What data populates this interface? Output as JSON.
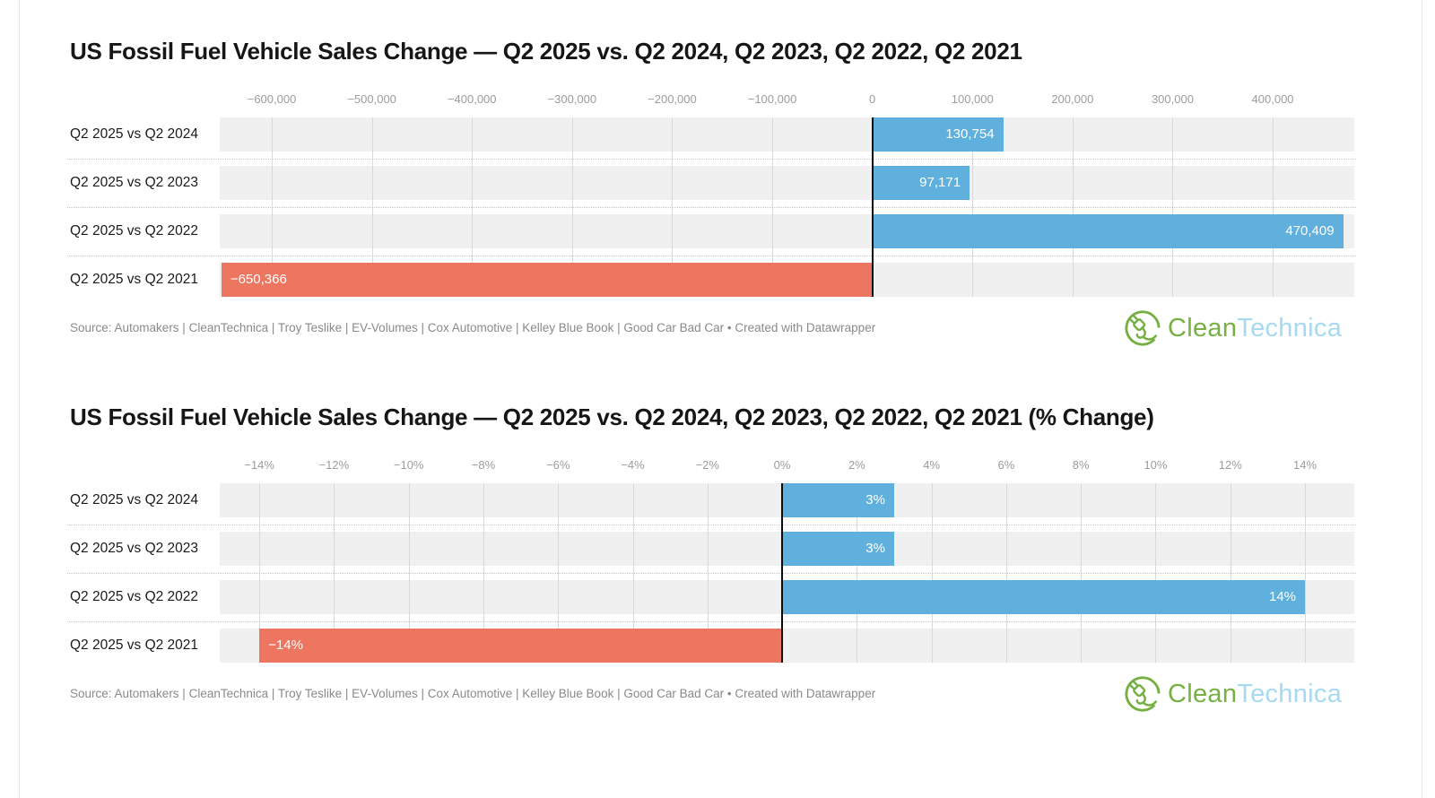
{
  "branding": {
    "clean": "Clean",
    "technica": "Technica",
    "green": "#76b043",
    "blue": "#a7d9f2"
  },
  "theme": {
    "band_bg": "#f0f0f0",
    "gridline": "#d9d9d9",
    "separator": "#c8c8c8",
    "tick_text": "#9c9c9c",
    "row_label_text": "#1a1a1a",
    "source_text": "#8a8a8a",
    "zero_line": "#0b0b0b",
    "bar_label_text": "#ffffff"
  },
  "charts": [
    {
      "source": "Source: Automakers | CleanTechnica | Troy Teslike | EV-Volumes | Cox Automotive | Kelley Blue Book | Good Car Bad Car • Created with Datawrapper",
      "chart_data": {
        "type": "bar",
        "orientation": "horizontal",
        "title": "US Fossil Fuel Vehicle Sales Change — Q2 2025 vs. Q2 2024, Q2 2023, Q2 2022, Q2 2021",
        "categories": [
          "Q2 2025 vs Q2 2024",
          "Q2 2025 vs Q2 2023",
          "Q2 2025 vs Q2 2022",
          "Q2 2025 vs Q2 2021"
        ],
        "values": [
          130754,
          97171,
          470409,
          -650366
        ],
        "value_labels": [
          "130,754",
          "97,171",
          "470,409",
          "−650,366"
        ],
        "xlim": [
          -652000,
          481500
        ],
        "grid": true,
        "legend": "none",
        "positive_color": "#5fb0dd",
        "negative_color": "#ed7661",
        "ticks": [
          {
            "value": -600000,
            "label": "−600,000"
          },
          {
            "value": -500000,
            "label": "−500,000"
          },
          {
            "value": -400000,
            "label": "−400,000"
          },
          {
            "value": -300000,
            "label": "−300,000"
          },
          {
            "value": -200000,
            "label": "−200,000"
          },
          {
            "value": -100000,
            "label": "−100,000"
          },
          {
            "value": 0,
            "label": "0"
          },
          {
            "value": 100000,
            "label": "100,000"
          },
          {
            "value": 200000,
            "label": "200,000"
          },
          {
            "value": 300000,
            "label": "300,000"
          },
          {
            "value": 400000,
            "label": "400,000"
          }
        ]
      }
    },
    {
      "source": "Source: Automakers | CleanTechnica | Troy Teslike | EV-Volumes | Cox Automotive | Kelley Blue Book | Good Car Bad Car • Created with Datawrapper",
      "chart_data": {
        "type": "bar",
        "orientation": "horizontal",
        "title": "US Fossil Fuel Vehicle Sales Change — Q2 2025 vs. Q2 2024, Q2 2023, Q2 2022, Q2 2021 (% Change)",
        "categories": [
          "Q2 2025 vs Q2 2024",
          "Q2 2025 vs Q2 2023",
          "Q2 2025 vs Q2 2022",
          "Q2 2025 vs Q2 2021"
        ],
        "values": [
          3,
          3,
          14,
          -14
        ],
        "value_labels": [
          "3%",
          "3%",
          "14%",
          "−14%"
        ],
        "xlim": [
          -15.06,
          15.32
        ],
        "grid": true,
        "legend": "none",
        "positive_color": "#5fb0dd",
        "negative_color": "#ed7661",
        "ticks": [
          {
            "value": -14,
            "label": "−14%"
          },
          {
            "value": -12,
            "label": "−12%"
          },
          {
            "value": -10,
            "label": "−10%"
          },
          {
            "value": -8,
            "label": "−8%"
          },
          {
            "value": -6,
            "label": "−6%"
          },
          {
            "value": -4,
            "label": "−4%"
          },
          {
            "value": -2,
            "label": "−2%"
          },
          {
            "value": 0,
            "label": "0%"
          },
          {
            "value": 2,
            "label": "2%"
          },
          {
            "value": 4,
            "label": "4%"
          },
          {
            "value": 6,
            "label": "6%"
          },
          {
            "value": 8,
            "label": "8%"
          },
          {
            "value": 10,
            "label": "10%"
          },
          {
            "value": 12,
            "label": "12%"
          },
          {
            "value": 14,
            "label": "14%"
          }
        ]
      }
    }
  ]
}
